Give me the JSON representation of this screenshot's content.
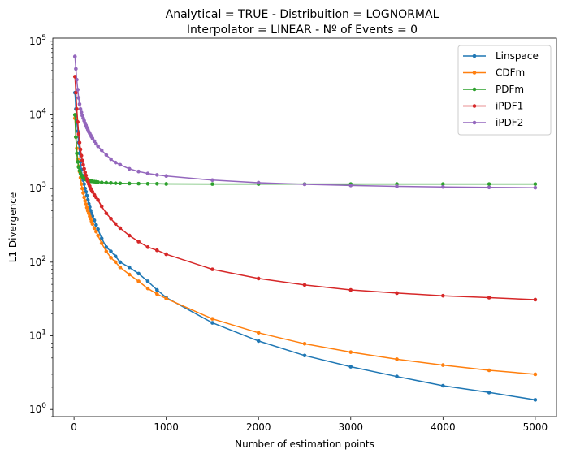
{
  "chart_data": {
    "type": "line",
    "title": "Analytical = TRUE - Distribuition = LOGNORMAL",
    "subtitle": "Interpolator = LINEAR - Nº of Events = 0",
    "xlabel": "Number of estimation points",
    "ylabel": "L1 Divergence",
    "xlim": [
      -230,
      5230
    ],
    "ylim": [
      0.8,
      110000
    ],
    "yscale": "log",
    "grid": false,
    "legend_position": "top-right",
    "x_ticks": [
      {
        "value": 0,
        "label": "0"
      },
      {
        "value": 1000,
        "label": "1000"
      },
      {
        "value": 2000,
        "label": "2000"
      },
      {
        "value": 3000,
        "label": "3000"
      },
      {
        "value": 4000,
        "label": "4000"
      },
      {
        "value": 5000,
        "label": "5000"
      }
    ],
    "y_ticks": [
      {
        "value": 1,
        "base": "10",
        "exp": "0"
      },
      {
        "value": 10,
        "base": "10",
        "exp": "1"
      },
      {
        "value": 100,
        "base": "10",
        "exp": "2"
      },
      {
        "value": 1000,
        "base": "10",
        "exp": "3"
      },
      {
        "value": 10000,
        "base": "10",
        "exp": "4"
      },
      {
        "value": 100000,
        "base": "10",
        "exp": "5"
      }
    ],
    "series": [
      {
        "name": "Linspace",
        "color": "#1f77b4",
        "x": [
          10,
          20,
          30,
          40,
          50,
          60,
          70,
          80,
          90,
          100,
          110,
          120,
          130,
          140,
          150,
          160,
          170,
          180,
          190,
          200,
          220,
          240,
          260,
          300,
          350,
          400,
          450,
          500,
          600,
          700,
          800,
          900,
          1000,
          1500,
          2000,
          2500,
          3000,
          3500,
          4000,
          4500,
          5000
        ],
        "y": [
          20000,
          12000,
          8000,
          6000,
          4200,
          3000,
          2300,
          1800,
          1500,
          1300,
          1150,
          1000,
          900,
          800,
          700,
          620,
          560,
          500,
          460,
          420,
          370,
          320,
          280,
          210,
          160,
          140,
          120,
          100,
          85,
          70,
          55,
          42,
          33,
          15,
          8.5,
          5.4,
          3.8,
          2.8,
          2.1,
          1.7,
          1.35
        ]
      },
      {
        "name": "CDFm",
        "color": "#ff7f0e",
        "x": [
          10,
          20,
          30,
          40,
          50,
          60,
          70,
          80,
          90,
          100,
          110,
          120,
          130,
          140,
          150,
          160,
          170,
          180,
          190,
          200,
          220,
          240,
          260,
          300,
          350,
          400,
          450,
          500,
          600,
          700,
          800,
          900,
          1000,
          1500,
          2000,
          2500,
          3000,
          3500,
          4000,
          4500,
          5000
        ],
        "y": [
          9000,
          5000,
          3500,
          2500,
          2000,
          1700,
          1400,
          1150,
          1000,
          870,
          760,
          680,
          610,
          550,
          500,
          460,
          420,
          390,
          360,
          330,
          290,
          260,
          230,
          180,
          140,
          115,
          100,
          85,
          68,
          55,
          44,
          37,
          32,
          17,
          11,
          7.8,
          6.0,
          4.8,
          4.0,
          3.4,
          3.0
        ]
      },
      {
        "name": "PDFm",
        "color": "#2ca02c",
        "x": [
          10,
          20,
          30,
          40,
          50,
          60,
          70,
          80,
          90,
          100,
          110,
          120,
          130,
          140,
          150,
          160,
          170,
          180,
          190,
          200,
          220,
          240,
          260,
          300,
          350,
          400,
          450,
          500,
          600,
          700,
          800,
          900,
          1000,
          1500,
          2000,
          2500,
          3000,
          3500,
          4000,
          4500,
          5000
        ],
        "y": [
          10000,
          5000,
          3000,
          2300,
          1950,
          1750,
          1600,
          1500,
          1440,
          1400,
          1370,
          1340,
          1320,
          1300,
          1290,
          1280,
          1270,
          1260,
          1255,
          1250,
          1240,
          1230,
          1220,
          1210,
          1200,
          1190,
          1180,
          1175,
          1170,
          1165,
          1160,
          1160,
          1155,
          1150,
          1150,
          1150,
          1150,
          1150,
          1150,
          1150,
          1150
        ]
      },
      {
        "name": "iPDF1",
        "color": "#d62728",
        "x": [
          10,
          20,
          30,
          40,
          50,
          60,
          70,
          80,
          90,
          100,
          110,
          120,
          130,
          140,
          150,
          160,
          170,
          180,
          190,
          200,
          220,
          240,
          260,
          300,
          350,
          400,
          450,
          500,
          600,
          700,
          800,
          900,
          1000,
          1500,
          2000,
          2500,
          3000,
          3500,
          4000,
          4500,
          5000
        ],
        "y": [
          33000,
          20000,
          12000,
          8000,
          5500,
          4200,
          3400,
          2800,
          2400,
          2100,
          1850,
          1650,
          1500,
          1350,
          1250,
          1150,
          1080,
          1000,
          950,
          900,
          820,
          760,
          700,
          570,
          460,
          390,
          330,
          290,
          230,
          190,
          160,
          145,
          128,
          80,
          60,
          49,
          42,
          38,
          35,
          33,
          31
        ]
      },
      {
        "name": "iPDF2",
        "color": "#9467bd",
        "x": [
          10,
          20,
          30,
          40,
          50,
          60,
          70,
          80,
          90,
          100,
          110,
          120,
          130,
          140,
          150,
          160,
          170,
          180,
          190,
          200,
          220,
          240,
          260,
          300,
          350,
          400,
          450,
          500,
          600,
          700,
          800,
          900,
          1000,
          1500,
          2000,
          2500,
          3000,
          3500,
          4000,
          4500,
          5000
        ],
        "y": [
          62000,
          42000,
          30000,
          22000,
          17000,
          14000,
          12000,
          10800,
          9800,
          9000,
          8300,
          7700,
          7200,
          6700,
          6300,
          5900,
          5600,
          5300,
          5050,
          4800,
          4400,
          4050,
          3750,
          3300,
          2850,
          2500,
          2250,
          2100,
          1850,
          1700,
          1600,
          1530,
          1480,
          1300,
          1200,
          1140,
          1100,
          1070,
          1050,
          1035,
          1025
        ]
      }
    ]
  }
}
